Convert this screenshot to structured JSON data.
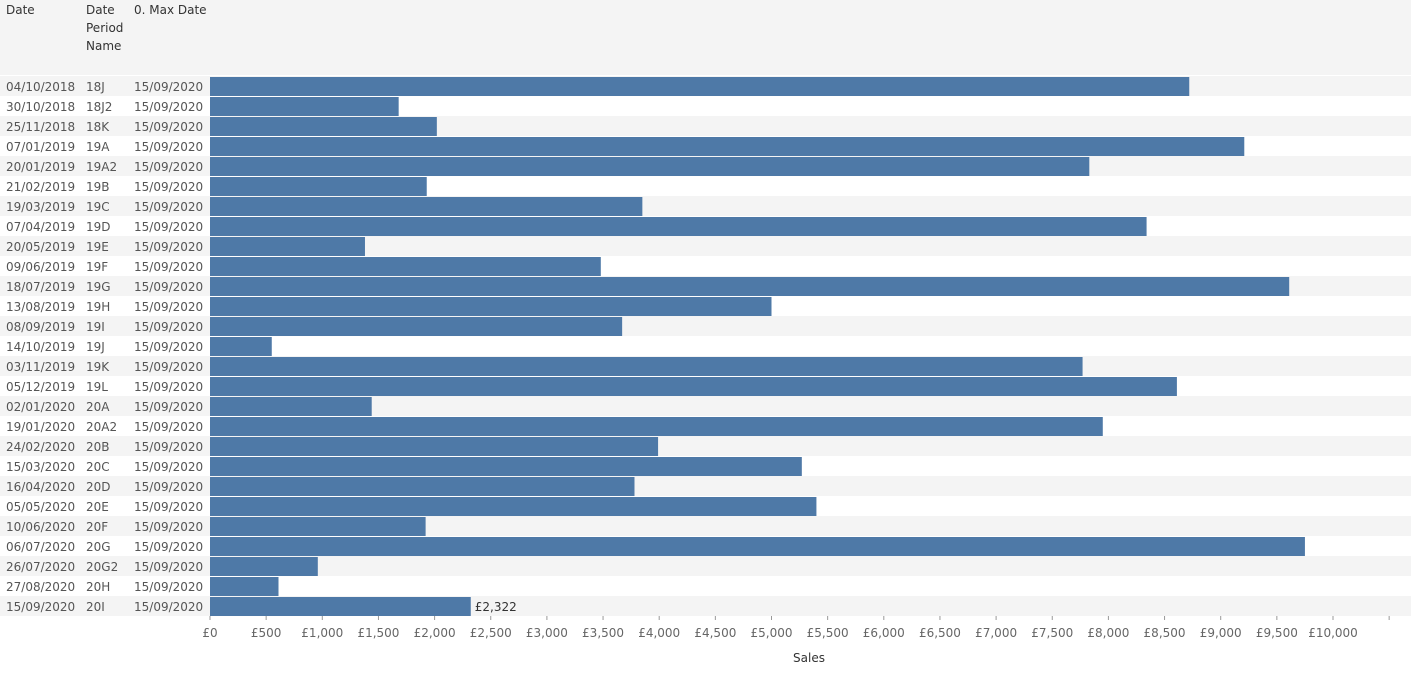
{
  "headers": {
    "date": "Date",
    "period": "Date\nPeriod\nName",
    "maxdate": "0. Max Date"
  },
  "colors": {
    "bar": "#4e79a7",
    "row_band": "#f4f4f4"
  },
  "chart_data": {
    "type": "bar",
    "orientation": "horizontal",
    "xlabel": "Sales",
    "xlim": [
      0,
      10500
    ],
    "xtick_values": [
      0,
      500,
      1000,
      1500,
      2000,
      2500,
      3000,
      3500,
      4000,
      4500,
      5000,
      5500,
      6000,
      6500,
      7000,
      7500,
      8000,
      8500,
      9000,
      9500,
      10000
    ],
    "xtick_labels": [
      "£0",
      "£500",
      "£1,000",
      "£1,500",
      "£2,000",
      "£2,500",
      "£3,000",
      "£3,500",
      "£4,000",
      "£4,500",
      "£5,000",
      "£5,500",
      "£6,000",
      "£6,500",
      "£7,000",
      "£7,500",
      "£8,000",
      "£8,500",
      "£9,000",
      "£9,500",
      "£10,000"
    ],
    "rows": [
      {
        "date": "04/10/2018",
        "period": "18J",
        "max_date": "15/09/2020",
        "value": 8720
      },
      {
        "date": "30/10/2018",
        "period": "18J2",
        "max_date": "15/09/2020",
        "value": 1680
      },
      {
        "date": "25/11/2018",
        "period": "18K",
        "max_date": "15/09/2020",
        "value": 2020
      },
      {
        "date": "07/01/2019",
        "period": "19A",
        "max_date": "15/09/2020",
        "value": 9210
      },
      {
        "date": "20/01/2019",
        "period": "19A2",
        "max_date": "15/09/2020",
        "value": 7830
      },
      {
        "date": "21/02/2019",
        "period": "19B",
        "max_date": "15/09/2020",
        "value": 1930
      },
      {
        "date": "19/03/2019",
        "period": "19C",
        "max_date": "15/09/2020",
        "value": 3850
      },
      {
        "date": "07/04/2019",
        "period": "19D",
        "max_date": "15/09/2020",
        "value": 8340
      },
      {
        "date": "20/05/2019",
        "period": "19E",
        "max_date": "15/09/2020",
        "value": 1380
      },
      {
        "date": "09/06/2019",
        "period": "19F",
        "max_date": "15/09/2020",
        "value": 3480
      },
      {
        "date": "18/07/2019",
        "period": "19G",
        "max_date": "15/09/2020",
        "value": 9610
      },
      {
        "date": "13/08/2019",
        "period": "19H",
        "max_date": "15/09/2020",
        "value": 5000
      },
      {
        "date": "08/09/2019",
        "period": "19I",
        "max_date": "15/09/2020",
        "value": 3670
      },
      {
        "date": "14/10/2019",
        "period": "19J",
        "max_date": "15/09/2020",
        "value": 550
      },
      {
        "date": "03/11/2019",
        "period": "19K",
        "max_date": "15/09/2020",
        "value": 7770
      },
      {
        "date": "05/12/2019",
        "period": "19L",
        "max_date": "15/09/2020",
        "value": 8610
      },
      {
        "date": "02/01/2020",
        "period": "20A",
        "max_date": "15/09/2020",
        "value": 1440
      },
      {
        "date": "19/01/2020",
        "period": "20A2",
        "max_date": "15/09/2020",
        "value": 7950
      },
      {
        "date": "24/02/2020",
        "period": "20B",
        "max_date": "15/09/2020",
        "value": 3990
      },
      {
        "date": "15/03/2020",
        "period": "20C",
        "max_date": "15/09/2020",
        "value": 5270
      },
      {
        "date": "16/04/2020",
        "period": "20D",
        "max_date": "15/09/2020",
        "value": 3780
      },
      {
        "date": "05/05/2020",
        "period": "20E",
        "max_date": "15/09/2020",
        "value": 5400
      },
      {
        "date": "10/06/2020",
        "period": "20F",
        "max_date": "15/09/2020",
        "value": 1920
      },
      {
        "date": "06/07/2020",
        "period": "20G",
        "max_date": "15/09/2020",
        "value": 9750
      },
      {
        "date": "26/07/2020",
        "period": "20G2",
        "max_date": "15/09/2020",
        "value": 960
      },
      {
        "date": "27/08/2020",
        "period": "20H",
        "max_date": "15/09/2020",
        "value": 610
      },
      {
        "date": "15/09/2020",
        "period": "20I",
        "max_date": "15/09/2020",
        "value": 2322,
        "label": "£2,322"
      }
    ]
  }
}
